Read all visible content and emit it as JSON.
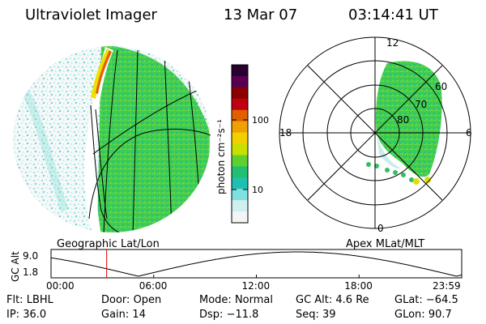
{
  "header": {
    "instrument": "Ultraviolet Imager",
    "date": "13 Mar 07",
    "time": "03:14:41 UT"
  },
  "colorbar": {
    "label": "photon cm⁻²s⁻¹",
    "ticks": [
      "100",
      "10"
    ],
    "colors": [
      "#2a0030",
      "#5a0050",
      "#8a0000",
      "#c00010",
      "#e06000",
      "#f0a000",
      "#f0d000",
      "#c8e000",
      "#60d030",
      "#20c070",
      "#20c0b0",
      "#80e0e0",
      "#d0f0f0",
      "#f4f4f4"
    ]
  },
  "left_panel": {
    "caption": "Geographic Lat/Lon"
  },
  "right_panel": {
    "caption": "Apex MLat/MLT",
    "mlt_labels": {
      "top": "12",
      "left": "18",
      "right": "6",
      "bottom": "0"
    },
    "lat_labels": [
      "60",
      "70",
      "80"
    ]
  },
  "timeline": {
    "ylabel": "GC Alt",
    "y_ticks": [
      "9.0",
      "1.8"
    ],
    "x_ticks": [
      "00:00",
      "06:00",
      "12:00",
      "18:00",
      "23:59"
    ],
    "marker_hour": 3.25,
    "marker_color": "#e00000"
  },
  "status": {
    "flt_label": "Flt:",
    "flt_value": "LBHL",
    "ip_label": "IP:",
    "ip_value": "36.0",
    "door_label": "Door:",
    "door_value": "Open",
    "gain_label": "Gain:",
    "gain_value": "14",
    "mode_label": "Mode:",
    "mode_value": "Normal",
    "dsp_label": "Dsp:",
    "dsp_value": "−11.8",
    "gcalt_label": "GC Alt:",
    "gcalt_value": "4.6 Re",
    "seq_label": "Seq:",
    "seq_value": "39",
    "glat_label": "GLat:",
    "glat_value": "−64.5",
    "glon_label": "GLon:",
    "glon_value": "90.7"
  }
}
